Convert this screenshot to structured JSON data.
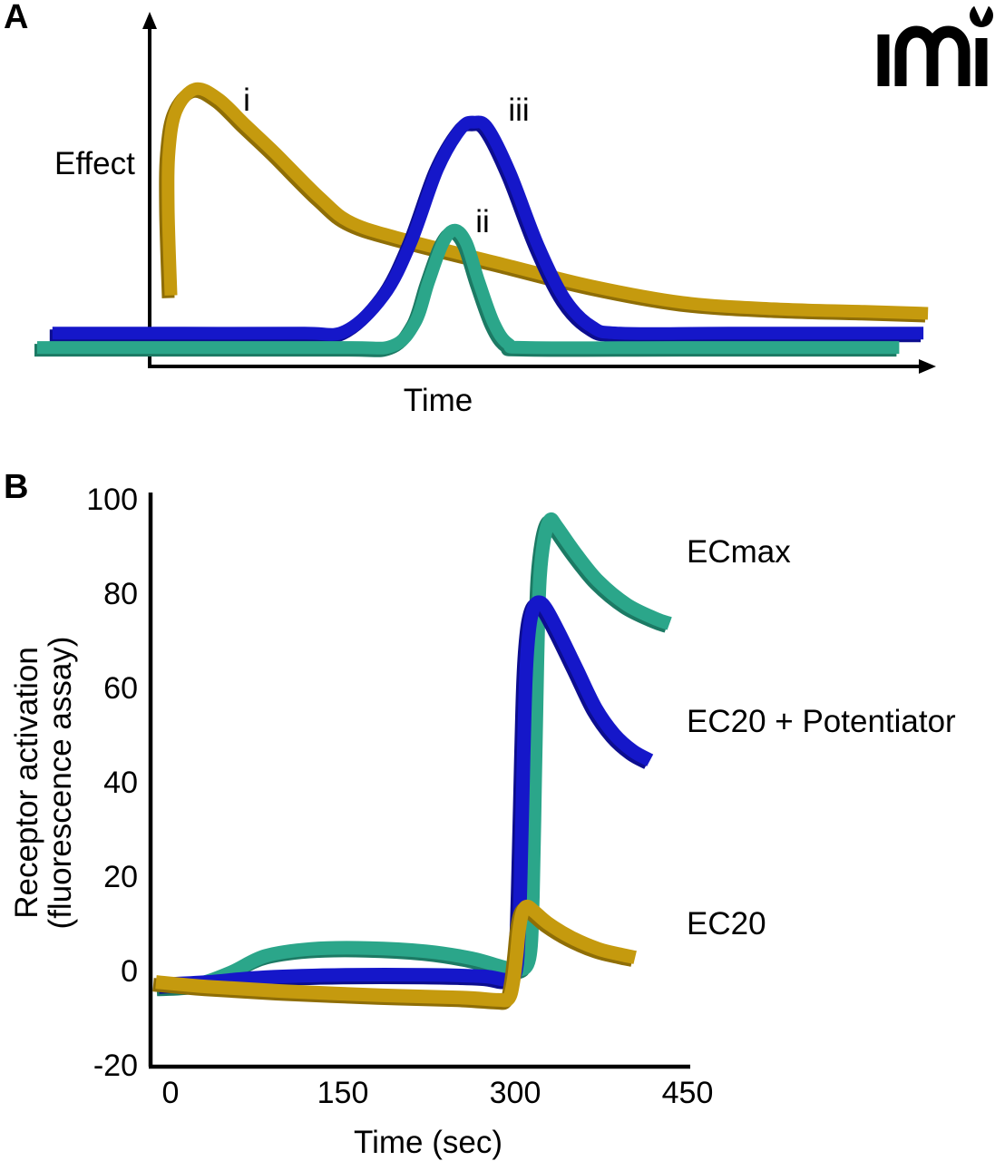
{
  "panel_a": {
    "label": "A",
    "y_axis_label": "Effect",
    "x_axis_label": "Time",
    "annotations": {
      "curve_i": "i",
      "curve_ii": "ii",
      "curve_iii": "iii"
    }
  },
  "panel_b": {
    "label": "B",
    "y_axis_label_line1": "Receptor activation",
    "y_axis_label_line2": "(fluorescence assay)",
    "x_axis_label": "Time (sec)",
    "annotations": {
      "ecmax": "ECmax",
      "ec20_potentiator": "EC20 + Potentiator",
      "ec20": "EC20"
    }
  },
  "logo": {
    "text": "mi"
  },
  "colors": {
    "gold": {
      "main": "#C59A0E",
      "dark": "#8F6E06"
    },
    "blue": {
      "main": "#1517C9",
      "dark": "#0C0D8F"
    },
    "teal": {
      "main": "#2BA68A",
      "dark": "#1C7A64"
    },
    "axis": "#000000"
  },
  "chart_data": [
    {
      "panel": "A",
      "type": "line",
      "title": "",
      "xlabel": "Time",
      "ylabel": "Effect",
      "axes_numeric": false,
      "x_range": [
        0,
        100
      ],
      "y_range": [
        0,
        100
      ],
      "series": [
        {
          "name": "i",
          "color": "gold",
          "points": [
            [
              15.2,
              24.5
            ],
            [
              14.9,
              55
            ],
            [
              15.0,
              75
            ],
            [
              15.8,
              89
            ],
            [
              17.9,
              96.5
            ],
            [
              20.5,
              93
            ],
            [
              23.5,
              84
            ],
            [
              26.8,
              74.2
            ],
            [
              31.8,
              58.5
            ],
            [
              35.4,
              49.7
            ],
            [
              41.9,
              43.4
            ],
            [
              52,
              35.5
            ],
            [
              62.1,
              27.7
            ],
            [
              72.2,
              22
            ],
            [
              82.3,
              19.8
            ],
            [
              92.4,
              18.9
            ],
            [
              99.5,
              18.2
            ]
          ]
        },
        {
          "name": "iii",
          "color": "blue",
          "points": [
            [
              2,
              11.3
            ],
            [
              16.7,
              11.3
            ],
            [
              29.8,
              11.3
            ],
            [
              34.6,
              12
            ],
            [
              38.9,
              24.5
            ],
            [
              41.9,
              42.8
            ],
            [
              44.9,
              68.6
            ],
            [
              47.5,
              82.7
            ],
            [
              49,
              84.9
            ],
            [
              50.5,
              82.7
            ],
            [
              53,
              67
            ],
            [
              56.1,
              41.8
            ],
            [
              59.1,
              23
            ],
            [
              62.1,
              13.5
            ],
            [
              65.2,
              11.3
            ],
            [
              77.3,
              11.3
            ],
            [
              99,
              11.3
            ]
          ]
        },
        {
          "name": "ii",
          "color": "teal",
          "points": [
            [
              0.3,
              6.3
            ],
            [
              16.7,
              6.3
            ],
            [
              34.8,
              6.3
            ],
            [
              39.9,
              6.9
            ],
            [
              42.4,
              15.1
            ],
            [
              43.9,
              29.2
            ],
            [
              45.5,
              42.8
            ],
            [
              46.8,
              47.2
            ],
            [
              48.1,
              42.8
            ],
            [
              49.5,
              29.2
            ],
            [
              51.2,
              14.5
            ],
            [
              52.8,
              7.5
            ],
            [
              55.1,
              6.3
            ],
            [
              72.2,
              6.3
            ],
            [
              96.3,
              6.3
            ]
          ]
        }
      ]
    },
    {
      "panel": "B",
      "type": "line",
      "title": "",
      "xlabel": "Time (sec)",
      "ylabel": "Receptor activation (fluorescence assay)",
      "xlim": [
        0,
        450
      ],
      "ylim": [
        -20,
        100
      ],
      "x_ticks": [
        0,
        150,
        300,
        450
      ],
      "y_ticks": [
        100,
        80,
        60,
        40,
        20,
        0,
        -20
      ],
      "legend_position": "right-annotations",
      "grid": false,
      "series": [
        {
          "name": "ECmax",
          "color": "teal",
          "points": [
            [
              -12,
              -4
            ],
            [
              20,
              -3.5
            ],
            [
              50,
              -1
            ],
            [
              80,
              2.5
            ],
            [
              120,
              4
            ],
            [
              170,
              4.2
            ],
            [
              220,
              3.5
            ],
            [
              260,
              2
            ],
            [
              285,
              0.3
            ],
            [
              300,
              -0.5
            ],
            [
              310,
              2
            ],
            [
              313,
              15
            ],
            [
              315,
              40
            ],
            [
              317,
              65
            ],
            [
              319,
              82
            ],
            [
              323,
              91
            ],
            [
              328,
              95
            ],
            [
              334,
              93.5
            ],
            [
              350,
              88
            ],
            [
              370,
              82
            ],
            [
              395,
              77
            ],
            [
              420,
              74
            ],
            [
              432,
              73
            ]
          ]
        },
        {
          "name": "EC20 + Potentiator",
          "color": "blue",
          "points": [
            [
              -10,
              -3.5
            ],
            [
              30,
              -3
            ],
            [
              80,
              -2
            ],
            [
              150,
              -1.5
            ],
            [
              220,
              -1.5
            ],
            [
              270,
              -1.8
            ],
            [
              290,
              -2.5
            ],
            [
              298,
              -1
            ],
            [
              301,
              8
            ],
            [
              303,
              25
            ],
            [
              305,
              45
            ],
            [
              307,
              62
            ],
            [
              310,
              72
            ],
            [
              314,
              76.5
            ],
            [
              319,
              77.5
            ],
            [
              325,
              76
            ],
            [
              336,
              71
            ],
            [
              352,
              63
            ],
            [
              368,
              55
            ],
            [
              384,
              49.5
            ],
            [
              400,
              46
            ],
            [
              415,
              44
            ]
          ]
        },
        {
          "name": "EC20",
          "color": "gold",
          "points": [
            [
              -15,
              -3
            ],
            [
              30,
              -4
            ],
            [
              100,
              -5
            ],
            [
              180,
              -5.8
            ],
            [
              250,
              -6.3
            ],
            [
              283,
              -6.8
            ],
            [
              292,
              -6.5
            ],
            [
              296,
              -3
            ],
            [
              299,
              3
            ],
            [
              301,
              8
            ],
            [
              304,
              11.8
            ],
            [
              308,
              13
            ],
            [
              314,
              12
            ],
            [
              326,
              9.5
            ],
            [
              346,
              6.5
            ],
            [
              370,
              4
            ],
            [
              390,
              2.8
            ],
            [
              402,
              2.2
            ]
          ]
        }
      ]
    }
  ]
}
